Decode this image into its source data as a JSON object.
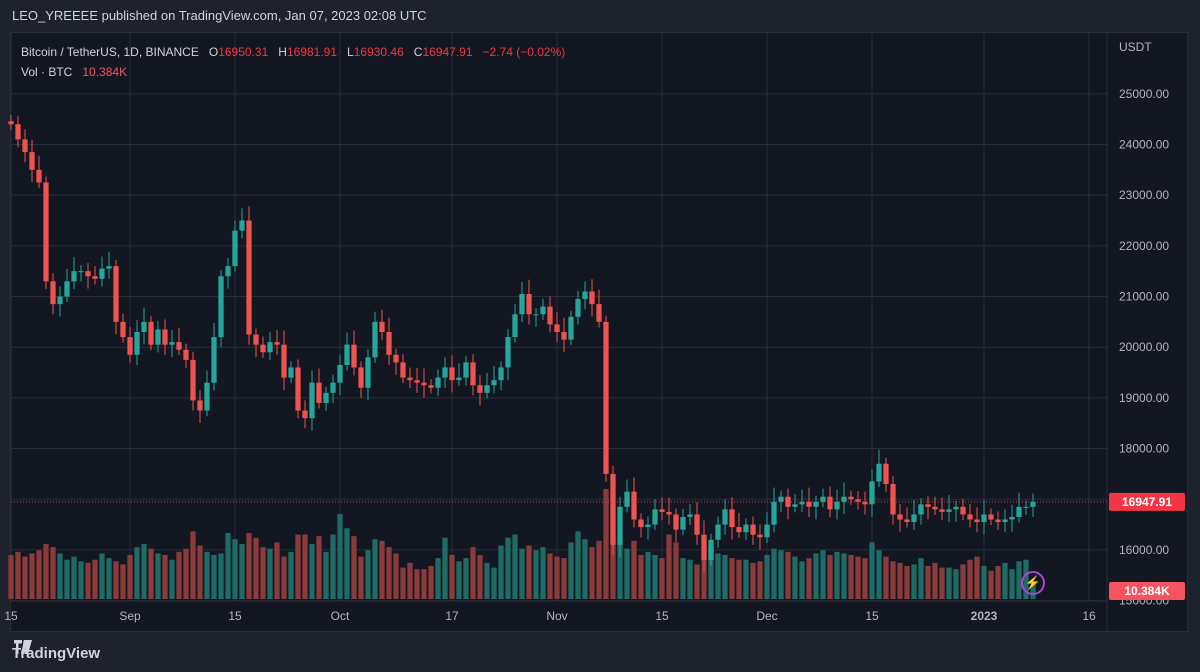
{
  "header": {
    "published": "LEO_YREEEE published on TradingView.com, Jan 07, 2023 02:08 UTC"
  },
  "legend": {
    "symbol": "Bitcoin / TetherUS, 1D, BINANCE",
    "o_label": "O",
    "o": "16950.31",
    "h_label": "H",
    "h": "16981.91",
    "l_label": "L",
    "l": "16930.46",
    "c_label": "C",
    "c": "16947.91",
    "change": "−2.74 (−0.02%)",
    "vol_label": "Vol · BTC",
    "vol": "10.384K"
  },
  "footer": {
    "brand": "TradingView"
  },
  "colors": {
    "up": "#26a69a",
    "down": "#ef5350",
    "vol_up": "#1f6b66",
    "vol_down": "#8c3b3b",
    "bg": "#131722",
    "last": "#f23645"
  },
  "chart_data": {
    "type": "candlestick",
    "currency": "USDT",
    "y_ticks": [
      15000,
      16000,
      17000,
      18000,
      19000,
      20000,
      21000,
      22000,
      23000,
      24000,
      25000
    ],
    "y_tick_labels": [
      "15000.00",
      "16000.00",
      "17000.00",
      "18000.00",
      "19000.00",
      "20000.00",
      "21000.00",
      "22000.00",
      "23000.00",
      "24000.00",
      "25000.00"
    ],
    "ylim": [
      14400,
      26200
    ],
    "x_tick_labels": [
      "15",
      "Sep",
      "15",
      "Oct",
      "17",
      "Nov",
      "15",
      "Dec",
      "15",
      "2023",
      "16"
    ],
    "x_tick_index": [
      0,
      17,
      32,
      47,
      63,
      78,
      93,
      108,
      123,
      139,
      154
    ],
    "last_price": "16947.91",
    "last_volume": "10.384K",
    "grid": true,
    "closes": [
      24400,
      24100,
      23850,
      23500,
      23250,
      21300,
      20850,
      21000,
      21300,
      21500,
      21500,
      21400,
      21350,
      21550,
      21600,
      20500,
      20200,
      19850,
      20300,
      20500,
      20050,
      20350,
      20050,
      20100,
      19950,
      19750,
      18950,
      18750,
      19300,
      20200,
      21400,
      21600,
      22300,
      22500,
      20250,
      20050,
      19900,
      20100,
      20050,
      19400,
      19600,
      18750,
      18600,
      19300,
      18900,
      19100,
      19300,
      19650,
      20050,
      19600,
      19200,
      19800,
      20500,
      20300,
      19850,
      19700,
      19400,
      19350,
      19300,
      19250,
      19200,
      19400,
      19600,
      19350,
      19400,
      19700,
      19250,
      19100,
      19250,
      19350,
      19600,
      20200,
      20650,
      21050,
      20650,
      20650,
      20800,
      20450,
      20300,
      20150,
      20600,
      20950,
      21100,
      20850,
      20500,
      17500,
      16100,
      16850,
      17150,
      16600,
      16450,
      16500,
      16800,
      16750,
      16700,
      16400,
      16650,
      16700,
      16300,
      15800,
      16200,
      16500,
      16800,
      16450,
      16350,
      16500,
      16300,
      16250,
      16500,
      16950,
      17050,
      16850,
      16900,
      16950,
      16850,
      16950,
      17050,
      16800,
      16950,
      17050,
      17000,
      16950,
      16900,
      17350,
      17700,
      17300,
      16700,
      16600,
      16550,
      16700,
      16900,
      16850,
      16800,
      16750,
      16800,
      16850,
      16700,
      16600,
      16550,
      16700,
      16600,
      16550,
      16600,
      16650,
      16850,
      16850,
      16950
    ],
    "volumes": [
      2.8,
      3.0,
      2.7,
      2.9,
      3.1,
      3.5,
      3.3,
      2.9,
      2.5,
      2.7,
      2.4,
      2.3,
      2.5,
      2.9,
      2.6,
      2.4,
      2.2,
      2.8,
      3.3,
      3.5,
      3.2,
      2.9,
      2.8,
      2.5,
      3.0,
      3.2,
      4.3,
      3.4,
      3.0,
      2.8,
      2.9,
      4.2,
      3.8,
      3.5,
      4.2,
      3.9,
      3.3,
      3.2,
      3.6,
      2.7,
      3.0,
      4.1,
      4.1,
      3.5,
      4.0,
      3.0,
      4.1,
      5.4,
      4.5,
      4.0,
      2.7,
      3.1,
      3.8,
      3.7,
      3.3,
      2.9,
      2.0,
      2.3,
      1.9,
      1.9,
      2.1,
      2.6,
      3.9,
      2.8,
      2.4,
      2.6,
      3.3,
      2.8,
      2.3,
      2.0,
      3.4,
      3.9,
      4.1,
      3.2,
      3.4,
      3.1,
      3.3,
      2.9,
      2.7,
      2.6,
      3.6,
      4.3,
      3.8,
      3.3,
      3.7,
      7.0,
      4.2,
      3.9,
      3.2,
      3.7,
      2.8,
      3.0,
      2.8,
      2.6,
      4.1,
      3.6,
      2.6,
      2.5,
      2.2,
      2.5,
      3.3,
      2.9,
      2.8,
      2.6,
      2.5,
      2.5,
      2.3,
      2.4,
      2.8,
      3.2,
      3.1,
      3.0,
      2.7,
      2.4,
      2.6,
      2.9,
      3.1,
      2.8,
      3.0,
      2.9,
      2.8,
      2.7,
      2.6,
      3.6,
      3.1,
      2.7,
      2.4,
      2.3,
      2.1,
      2.2,
      2.6,
      2.1,
      2.3,
      2.0,
      2.0,
      1.9,
      2.2,
      2.5,
      2.7,
      2.1,
      1.8,
      2.1,
      2.3,
      1.9,
      2.4,
      2.5,
      1.0
    ]
  }
}
